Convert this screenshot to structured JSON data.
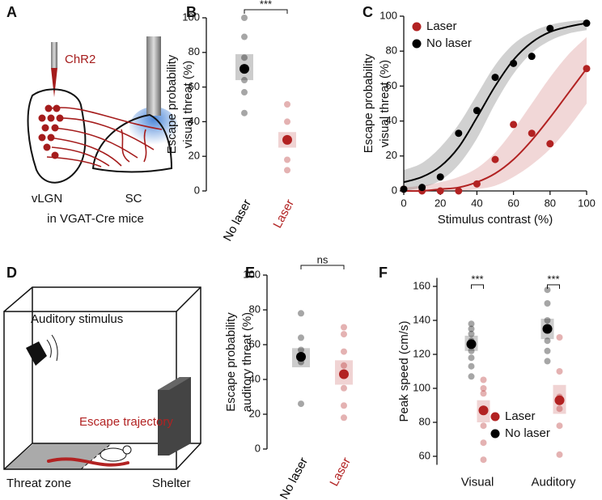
{
  "diagrams": [
    {
      "label": "A",
      "texts": [
        "ChR2",
        "vLGN",
        "SC",
        "in VGAT-Cre mice"
      ]
    },
    {
      "label": "D",
      "texts": [
        "Auditory stimulus",
        "Escape trajectory",
        "Threat zone",
        "Shelter"
      ]
    }
  ],
  "chart_data": [
    {
      "type": "strip",
      "label": "B",
      "ylabel": [
        "Escape probability",
        "visual threat (%)"
      ],
      "ylim": [
        0,
        100
      ],
      "yticks": [
        0,
        20,
        40,
        60,
        80,
        100
      ],
      "significance": "***",
      "groups": [
        {
          "label": "No laser",
          "color": "#000000",
          "points": [
            100,
            89,
            77,
            64,
            57,
            45
          ],
          "mean": 70.5,
          "ci": [
            64,
            79
          ]
        },
        {
          "label": "Laser",
          "color": "#b22222",
          "points": [
            50,
            40,
            30,
            18,
            12
          ],
          "mean": 29.5,
          "ci": [
            25,
            34
          ]
        }
      ]
    },
    {
      "type": "scatter",
      "label": "C",
      "ylabel": [
        "Escape probability",
        "visual threat (%)"
      ],
      "xlabel": "Stimulus contrast (%)",
      "xlim": [
        0,
        100
      ],
      "xticks": [
        0,
        20,
        40,
        60,
        80,
        100
      ],
      "ylim": [
        0,
        100
      ],
      "yticks": [
        0,
        20,
        40,
        60,
        80,
        100
      ],
      "fit_x": [
        0,
        10,
        20,
        30,
        40,
        50,
        60,
        70,
        80,
        90,
        100
      ],
      "series": [
        {
          "name": "Laser",
          "color": "#b22222",
          "x": [
            0,
            10,
            20,
            30,
            40,
            50,
            60,
            70,
            80,
            100
          ],
          "values": [
            1,
            0,
            0,
            0,
            4,
            18,
            38,
            33,
            27,
            70
          ],
          "fit": [
            0,
            0,
            1,
            2,
            5,
            10,
            18,
            29,
            42,
            56,
            70
          ],
          "fit_low": [
            0,
            0,
            0,
            0,
            1,
            3,
            8,
            15,
            24,
            36,
            50
          ],
          "fit_high": [
            2,
            3,
            5,
            8,
            13,
            22,
            35,
            50,
            65,
            78,
            88
          ]
        },
        {
          "name": "No laser",
          "color": "#000000",
          "x": [
            0,
            10,
            20,
            30,
            40,
            50,
            60,
            70,
            80,
            100
          ],
          "values": [
            1,
            2,
            8,
            33,
            46,
            65,
            73,
            77,
            93,
            96
          ],
          "fit": [
            5,
            8,
            14,
            25,
            42,
            60,
            75,
            85,
            91,
            94,
            96
          ],
          "fit_low": [
            0,
            2,
            6,
            15,
            30,
            50,
            67,
            79,
            86,
            90,
            92
          ],
          "fit_high": [
            12,
            16,
            25,
            38,
            55,
            72,
            84,
            91,
            95,
            97,
            98
          ]
        }
      ]
    },
    {
      "type": "strip",
      "label": "E",
      "ylabel": [
        "Escape probability",
        "auditory threat (%)"
      ],
      "ylim": [
        0,
        100
      ],
      "yticks": [
        0,
        20,
        40,
        60,
        80,
        100
      ],
      "significance": "ns",
      "groups": [
        {
          "label": "No laser",
          "color": "#000000",
          "points": [
            78,
            64,
            57,
            50,
            26
          ],
          "mean": 53,
          "ci": [
            47,
            58
          ]
        },
        {
          "label": "Laser",
          "color": "#b22222",
          "points": [
            70,
            66,
            56,
            48,
            35,
            25,
            18
          ],
          "mean": 43,
          "ci": [
            37,
            51
          ]
        }
      ]
    },
    {
      "type": "grouped-strip",
      "label": "F",
      "ylabel": [
        "Peak speed (cm/s)"
      ],
      "ylim": [
        55,
        165
      ],
      "yticks": [
        60,
        80,
        100,
        120,
        140,
        160
      ],
      "categories": [
        "Visual",
        "Auditory"
      ],
      "significance": [
        "***",
        "***"
      ],
      "series": [
        {
          "name": "Laser",
          "color": "#b22222",
          "points": [
            [
              105,
              100,
              97,
              78,
              68,
              58
            ],
            [
              130,
              110,
              95,
              88,
              78,
              61
            ]
          ],
          "mean": [
            87,
            93
          ],
          "ci": [
            [
              80,
              93
            ],
            [
              85,
              102
            ]
          ]
        },
        {
          "name": "No laser",
          "color": "#000000",
          "points": [
            [
              138,
              135,
              132,
              128,
              122,
              118,
              113,
              107
            ],
            [
              158,
              150,
              140,
              128,
              122,
              116
            ]
          ],
          "mean": [
            126,
            135
          ],
          "ci": [
            [
              122,
              131
            ],
            [
              129,
              141
            ]
          ]
        }
      ]
    }
  ]
}
